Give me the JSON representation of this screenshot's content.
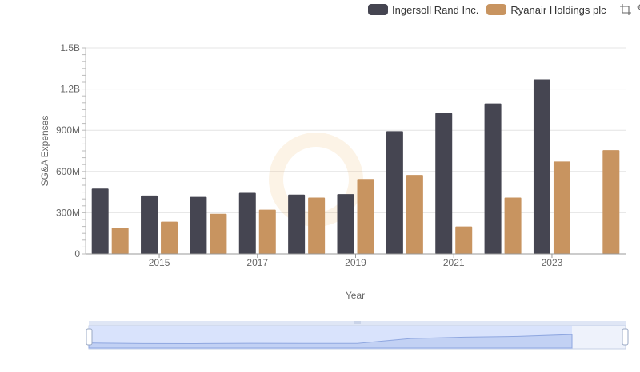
{
  "chart_data": {
    "type": "bar",
    "xlabel": "Year",
    "ylabel": "SG&A Expenses",
    "ylim": [
      0,
      1500000000
    ],
    "yticks": [
      {
        "value": 0,
        "label": "0"
      },
      {
        "value": 300000000,
        "label": "300M"
      },
      {
        "value": 600000000,
        "label": "600M"
      },
      {
        "value": 900000000,
        "label": "900M"
      },
      {
        "value": 1200000000,
        "label": "1.2B"
      },
      {
        "value": 1500000000,
        "label": "1.5B"
      }
    ],
    "categories": [
      "2014",
      "2015",
      "2016",
      "2017",
      "2018",
      "2019",
      "2020",
      "2021",
      "2022",
      "2023",
      "2024"
    ],
    "xtick_labels": [
      "2015",
      "2017",
      "2019",
      "2021",
      "2023"
    ],
    "grid": true,
    "legend_position": "top-right",
    "series": [
      {
        "name": "Ingersoll Rand Inc.",
        "color": "#454551",
        "values": [
          475000000,
          425000000,
          415000000,
          445000000,
          432000000,
          435000000,
          893000000,
          1025000000,
          1095000000,
          1270000000,
          null
        ]
      },
      {
        "name": "Ryanair Holdings plc",
        "color": "#c89460",
        "values": [
          192000000,
          235000000,
          292000000,
          322000000,
          410000000,
          545000000,
          575000000,
          200000000,
          410000000,
          672000000,
          755000000
        ]
      }
    ]
  },
  "toolbar": {
    "zoom_icon": "zoom-icon",
    "restore_icon": "restore-icon"
  }
}
